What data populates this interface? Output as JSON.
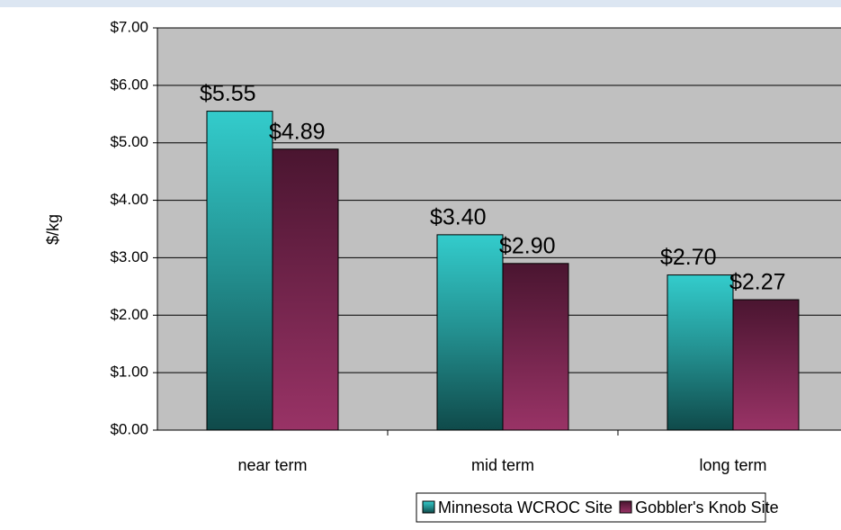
{
  "chart_data": {
    "type": "bar",
    "y_label": "$/kg",
    "categories": [
      "near term",
      "mid term",
      "long term"
    ],
    "series": [
      {
        "name": "Minnesota WCROC Site",
        "color": "#33cccc",
        "values": [
          5.55,
          3.4,
          2.7
        ],
        "value_labels": [
          "$5.55",
          "$3.40",
          "$2.70"
        ]
      },
      {
        "name": "Gobbler's Knob Site",
        "color": "#993366",
        "values": [
          4.89,
          2.9,
          2.27
        ],
        "value_labels": [
          "$4.89",
          "$2.90",
          "$2.27"
        ]
      }
    ],
    "ylim": [
      0,
      7
    ],
    "yticks": [
      {
        "value": 0,
        "label": "$0.00"
      },
      {
        "value": 1,
        "label": "$1.00"
      },
      {
        "value": 2,
        "label": "$2.00"
      },
      {
        "value": 3,
        "label": "$3.00"
      },
      {
        "value": 4,
        "label": "$4.00"
      },
      {
        "value": 5,
        "label": "$5.00"
      },
      {
        "value": 6,
        "label": "$6.00"
      },
      {
        "value": 7,
        "label": "$7.00"
      }
    ],
    "grid": true,
    "legend": "bottom"
  }
}
